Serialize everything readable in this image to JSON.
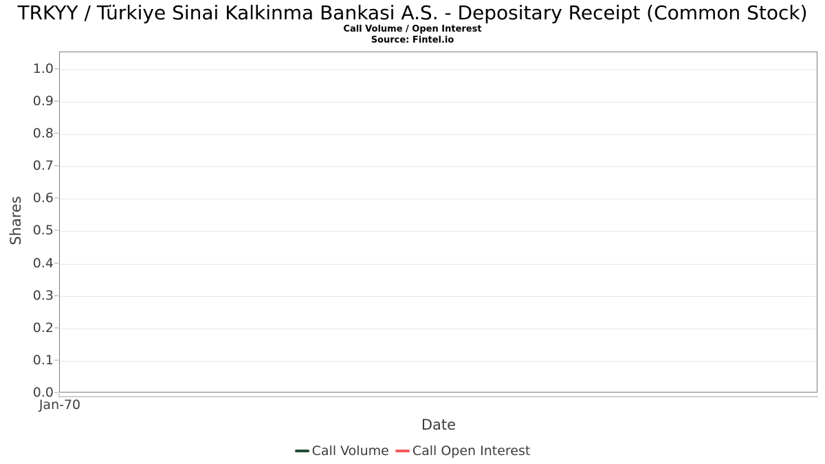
{
  "header": {
    "title": "TRKYY / Türkiye Sinai Kalkinma Bankasi A.S. - Depositary Receipt (Common Stock)",
    "subtitle": "Call Volume / Open Interest",
    "source": "Source: Fintel.io"
  },
  "chart_data": {
    "type": "line",
    "title": "TRKYY / Türkiye Sinai Kalkinma Bankasi A.S. - Depositary Receipt (Common Stock)",
    "subtitle": "Call Volume / Open Interest",
    "source": "Source: Fintel.io",
    "xlabel": "Date",
    "ylabel": "Shares",
    "ylim": [
      0.0,
      1.053
    ],
    "yticks": [
      0.0,
      0.1,
      0.2,
      0.3,
      0.4,
      0.5,
      0.6,
      0.7,
      0.8,
      0.9,
      1.0
    ],
    "ytick_labels": [
      "0.0",
      "0.1",
      "0.2",
      "0.3",
      "0.4",
      "0.5",
      "0.6",
      "0.7",
      "0.8",
      "0.9",
      "1.0"
    ],
    "xtick_labels": [
      "Jan-70"
    ],
    "grid": "horizontal",
    "legend_position": "bottom",
    "series": [
      {
        "name": "Call Volume",
        "color": "#234d36",
        "x": [],
        "values": []
      },
      {
        "name": "Call Open Interest",
        "color": "#f4595b",
        "x": [],
        "values": []
      }
    ]
  },
  "colors": {
    "plot_border": "#7b7b7b",
    "gridline": "#e7e7e7",
    "axis_line": "#cfcfcf",
    "axis_text": "#3d3d3d",
    "title_text": "#000000"
  }
}
